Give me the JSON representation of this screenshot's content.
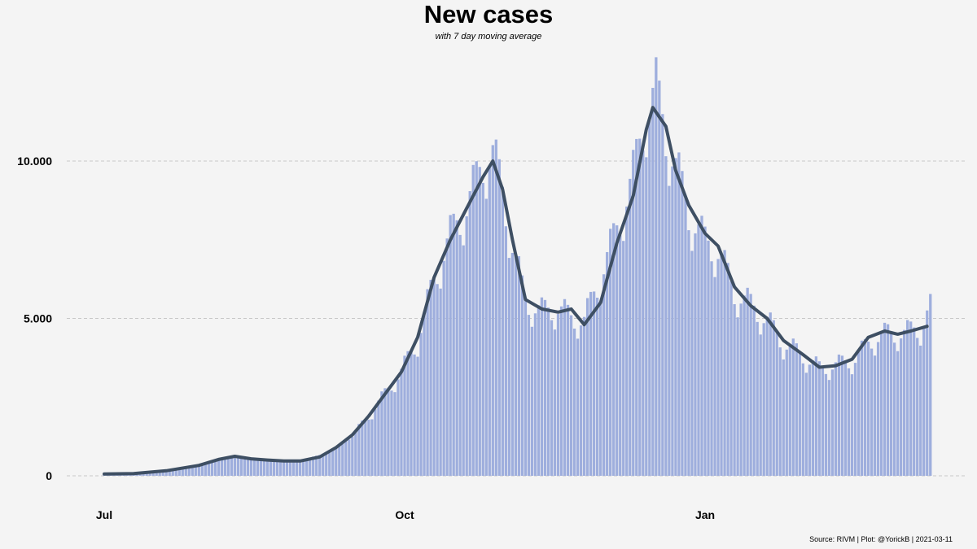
{
  "header": {
    "title": "New cases",
    "subtitle": "with 7 day moving average"
  },
  "caption": "Source: RIVM | Plot: @YorickB |  2021-03-11",
  "colors": {
    "background": "#f4f4f4",
    "bar": "#9eaedd",
    "line": "#3e4f63",
    "grid": "#c8c8c8"
  },
  "chart_data": {
    "type": "bar",
    "title": "New cases",
    "subtitle": "with 7 day moving average",
    "x_start": "2020-07-01",
    "x_end": "2021-03-11",
    "grid": "horizontal dashed",
    "legend": "none",
    "ylim": [
      -500,
      13500
    ],
    "y_ticks": [
      {
        "value": 0,
        "label": "0"
      },
      {
        "value": 5000,
        "label": "5.000"
      },
      {
        "value": 10000,
        "label": "10.000"
      }
    ],
    "x_ticks": [
      {
        "date": "2020-07-01",
        "label": "Jul"
      },
      {
        "date": "2020-10-01",
        "label": "Oct"
      },
      {
        "date": "2021-01-01",
        "label": "Jan"
      }
    ],
    "series": [
      {
        "kind": "bar",
        "anchors": [
          [
            "2020-07-01",
            60
          ],
          [
            "2020-07-15",
            120
          ],
          [
            "2020-07-25",
            240
          ],
          [
            "2020-08-01",
            400
          ],
          [
            "2020-08-07",
            560
          ],
          [
            "2020-08-10",
            620
          ],
          [
            "2020-08-15",
            540
          ],
          [
            "2020-08-20",
            500
          ],
          [
            "2020-08-25",
            470
          ],
          [
            "2020-08-30",
            480
          ],
          [
            "2020-09-05",
            660
          ],
          [
            "2020-09-10",
            900
          ],
          [
            "2020-09-15",
            1250
          ],
          [
            "2020-09-20",
            1900
          ],
          [
            "2020-09-25",
            2600
          ],
          [
            "2020-09-30",
            3300
          ],
          [
            "2020-10-05",
            4300
          ],
          [
            "2020-10-10",
            6200
          ],
          [
            "2020-10-15",
            7600
          ],
          [
            "2020-10-20",
            8500
          ],
          [
            "2020-10-25",
            9900
          ],
          [
            "2020-10-28",
            10200
          ],
          [
            "2020-10-31",
            9000
          ],
          [
            "2020-11-03",
            7300
          ],
          [
            "2020-11-07",
            5500
          ],
          [
            "2020-11-12",
            5200
          ],
          [
            "2020-11-17",
            5300
          ],
          [
            "2020-11-21",
            5000
          ],
          [
            "2020-11-25",
            4900
          ],
          [
            "2020-11-30",
            6300
          ],
          [
            "2020-12-05",
            7800
          ],
          [
            "2020-12-10",
            9500
          ],
          [
            "2020-12-14",
            11500
          ],
          [
            "2020-12-17",
            12200
          ],
          [
            "2020-12-20",
            10800
          ],
          [
            "2020-12-23",
            9800
          ],
          [
            "2020-12-27",
            8300
          ],
          [
            "2021-01-01",
            7400
          ],
          [
            "2021-01-05",
            7100
          ],
          [
            "2021-01-10",
            5800
          ],
          [
            "2021-01-15",
            5400
          ],
          [
            "2021-01-20",
            4900
          ],
          [
            "2021-01-25",
            4200
          ],
          [
            "2021-01-31",
            3800
          ],
          [
            "2021-02-05",
            3400
          ],
          [
            "2021-02-10",
            3500
          ],
          [
            "2021-02-16",
            3700
          ],
          [
            "2021-02-21",
            4300
          ],
          [
            "2021-02-26",
            4500
          ],
          [
            "2021-03-03",
            4500
          ],
          [
            "2021-03-08",
            4700
          ],
          [
            "2021-03-11",
            5300
          ]
        ]
      },
      {
        "kind": "line",
        "points": [
          [
            "2020-07-01",
            60
          ],
          [
            "2020-07-10",
            70
          ],
          [
            "2020-07-20",
            160
          ],
          [
            "2020-07-30",
            330
          ],
          [
            "2020-08-05",
            520
          ],
          [
            "2020-08-10",
            620
          ],
          [
            "2020-08-15",
            540
          ],
          [
            "2020-08-20",
            500
          ],
          [
            "2020-08-25",
            470
          ],
          [
            "2020-08-30",
            470
          ],
          [
            "2020-09-05",
            600
          ],
          [
            "2020-09-10",
            900
          ],
          [
            "2020-09-15",
            1300
          ],
          [
            "2020-09-20",
            1900
          ],
          [
            "2020-09-25",
            2600
          ],
          [
            "2020-09-30",
            3300
          ],
          [
            "2020-10-05",
            4400
          ],
          [
            "2020-10-10",
            6300
          ],
          [
            "2020-10-15",
            7500
          ],
          [
            "2020-10-20",
            8500
          ],
          [
            "2020-10-25",
            9500
          ],
          [
            "2020-10-28",
            10000
          ],
          [
            "2020-10-31",
            9100
          ],
          [
            "2020-11-03",
            7500
          ],
          [
            "2020-11-07",
            5600
          ],
          [
            "2020-11-12",
            5300
          ],
          [
            "2020-11-17",
            5200
          ],
          [
            "2020-11-21",
            5300
          ],
          [
            "2020-11-25",
            4800
          ],
          [
            "2020-11-30",
            5500
          ],
          [
            "2020-12-05",
            7400
          ],
          [
            "2020-12-10",
            8900
          ],
          [
            "2020-12-14",
            11000
          ],
          [
            "2020-12-16",
            11700
          ],
          [
            "2020-12-20",
            11100
          ],
          [
            "2020-12-23",
            9700
          ],
          [
            "2020-12-27",
            8600
          ],
          [
            "2021-01-01",
            7700
          ],
          [
            "2021-01-05",
            7300
          ],
          [
            "2021-01-10",
            6000
          ],
          [
            "2021-01-15",
            5400
          ],
          [
            "2021-01-20",
            5000
          ],
          [
            "2021-01-25",
            4300
          ],
          [
            "2021-01-31",
            3850
          ],
          [
            "2021-02-05",
            3450
          ],
          [
            "2021-02-10",
            3500
          ],
          [
            "2021-02-15",
            3700
          ],
          [
            "2021-02-20",
            4400
          ],
          [
            "2021-02-25",
            4600
          ],
          [
            "2021-03-01",
            4500
          ],
          [
            "2021-03-05",
            4600
          ],
          [
            "2021-03-10",
            4750
          ]
        ]
      }
    ]
  }
}
